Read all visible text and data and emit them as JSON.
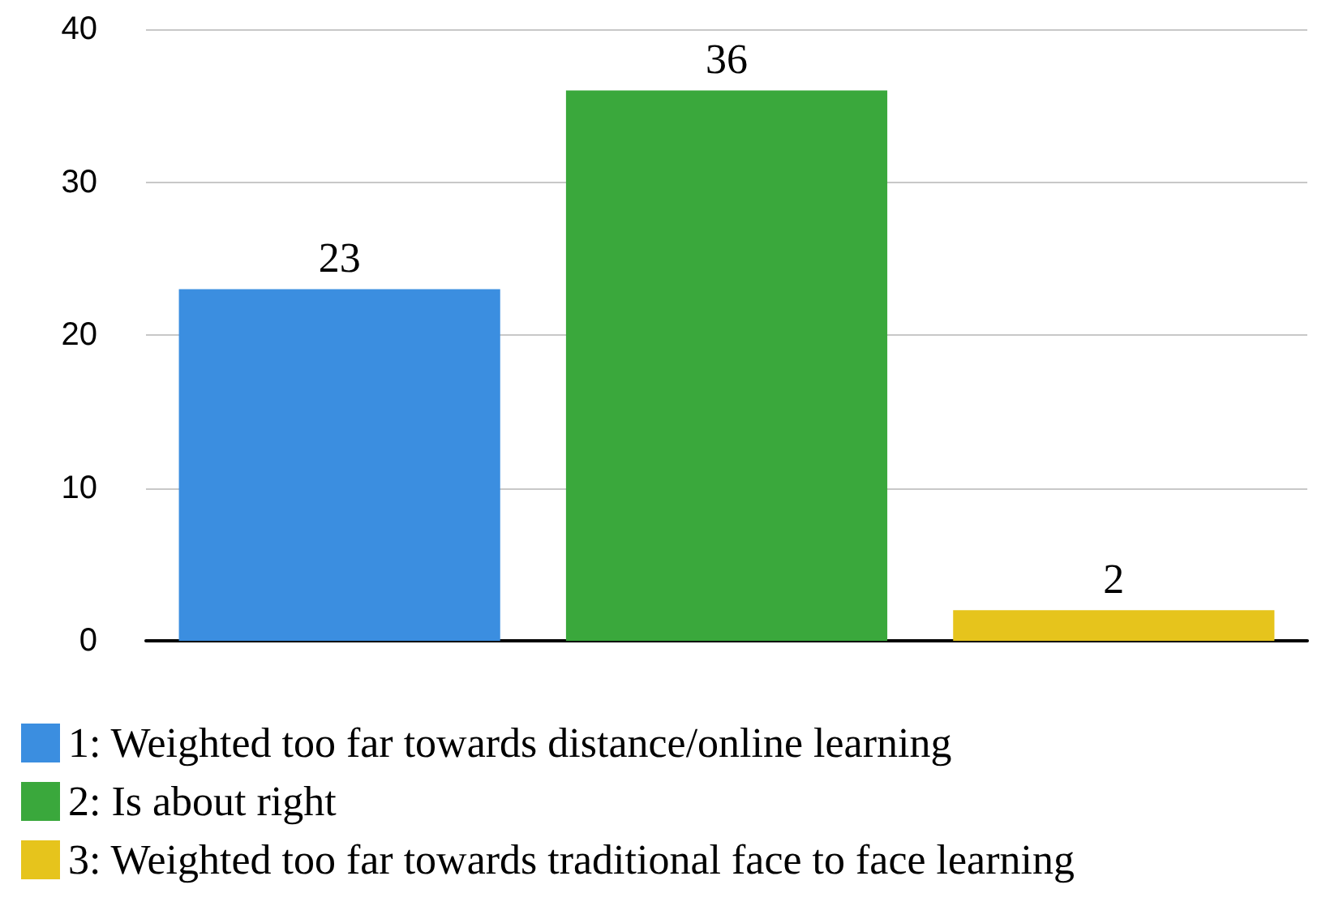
{
  "chart_data": {
    "type": "bar",
    "categories": [
      null,
      null,
      null
    ],
    "series": [
      {
        "name": "1: Weighted too far towards distance/online learning",
        "color": "#3b8ee0",
        "values": [
          23,
          null,
          null
        ]
      },
      {
        "name": "2: Is about right",
        "color": "#3aa83c",
        "values": [
          null,
          36,
          null
        ]
      },
      {
        "name": "3: Weighted too far towards traditional face to face learning",
        "color": "#e6c41c",
        "values": [
          null,
          null,
          2
        ]
      }
    ],
    "ylim": [
      0,
      40
    ],
    "yticks": [
      0,
      10,
      20,
      30,
      40
    ],
    "grid": "y",
    "legend": "bottom",
    "tick_labels": "y",
    "data_labels": true
  }
}
